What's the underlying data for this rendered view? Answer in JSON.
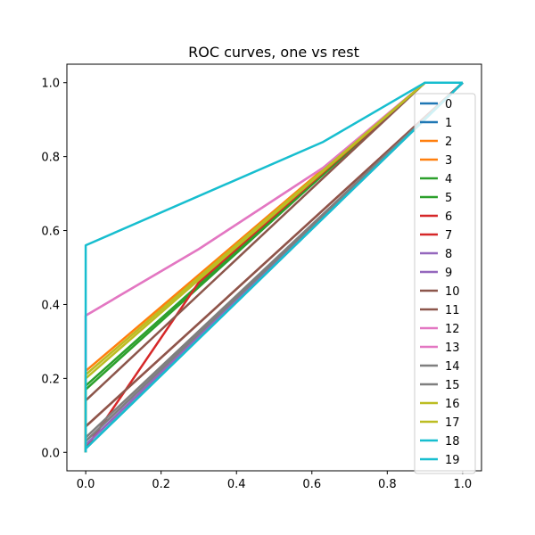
{
  "chart_data": {
    "type": "line",
    "title": "ROC curves, one vs rest",
    "xlabel": "",
    "ylabel": "",
    "xlim": [
      -0.05,
      1.05
    ],
    "ylim": [
      -0.05,
      1.05
    ],
    "xticks": [
      0.0,
      0.2,
      0.4,
      0.6,
      0.8,
      1.0
    ],
    "yticks": [
      0.0,
      0.2,
      0.4,
      0.6,
      0.8,
      1.0
    ],
    "xtick_labels": [
      "0.0",
      "0.2",
      "0.4",
      "0.6",
      "0.8",
      "1.0"
    ],
    "ytick_labels": [
      "0.0",
      "0.2",
      "0.4",
      "0.6",
      "0.8",
      "1.0"
    ],
    "grid": false,
    "legend_position": "right",
    "series": [
      {
        "name": "0",
        "color": "#1f77b4",
        "x": [
          0,
          0,
          1
        ],
        "y": [
          0,
          0.02,
          1
        ]
      },
      {
        "name": "1",
        "color": "#1f77b4",
        "x": [
          0,
          0,
          1
        ],
        "y": [
          0,
          0.01,
          1
        ]
      },
      {
        "name": "2",
        "color": "#ff7f0e",
        "x": [
          0,
          0,
          0.9,
          1
        ],
        "y": [
          0,
          0.22,
          1,
          1
        ]
      },
      {
        "name": "3",
        "color": "#ff7f0e",
        "x": [
          0,
          0,
          0.9,
          1
        ],
        "y": [
          0,
          0.21,
          1,
          1
        ]
      },
      {
        "name": "4",
        "color": "#2ca02c",
        "x": [
          0,
          0,
          0.9,
          1
        ],
        "y": [
          0,
          0.18,
          1,
          1
        ]
      },
      {
        "name": "5",
        "color": "#2ca02c",
        "x": [
          0,
          0,
          0.9,
          1
        ],
        "y": [
          0,
          0.17,
          1,
          1
        ]
      },
      {
        "name": "6",
        "color": "#d62728",
        "x": [
          0,
          0,
          1
        ],
        "y": [
          0,
          0.07,
          1
        ]
      },
      {
        "name": "7",
        "color": "#d62728",
        "x": [
          0,
          0,
          0.3,
          0.9,
          1
        ],
        "y": [
          0,
          0.01,
          0.46,
          1,
          1
        ]
      },
      {
        "name": "8",
        "color": "#9467bd",
        "x": [
          0,
          0,
          1
        ],
        "y": [
          0,
          0.02,
          1
        ]
      },
      {
        "name": "9",
        "color": "#9467bd",
        "x": [
          0,
          0,
          1
        ],
        "y": [
          0,
          0.03,
          1
        ]
      },
      {
        "name": "10",
        "color": "#8c564b",
        "x": [
          0,
          0,
          0.9,
          1
        ],
        "y": [
          0,
          0.14,
          1,
          1
        ]
      },
      {
        "name": "11",
        "color": "#8c564b",
        "x": [
          0,
          0,
          1
        ],
        "y": [
          0,
          0.07,
          1
        ]
      },
      {
        "name": "12",
        "color": "#e377c2",
        "x": [
          0,
          0,
          0.3,
          0.63,
          0.9,
          1
        ],
        "y": [
          0,
          0.37,
          0.55,
          0.77,
          1,
          1
        ]
      },
      {
        "name": "13",
        "color": "#e377c2",
        "x": [
          0,
          0,
          0.3,
          0.63,
          0.9,
          1
        ],
        "y": [
          0,
          0.37,
          0.55,
          0.77,
          1,
          1
        ]
      },
      {
        "name": "14",
        "color": "#7f7f7f",
        "x": [
          0,
          0,
          1
        ],
        "y": [
          0,
          0.04,
          1
        ]
      },
      {
        "name": "15",
        "color": "#7f7f7f",
        "x": [
          0,
          0,
          1
        ],
        "y": [
          0,
          0.03,
          1
        ]
      },
      {
        "name": "16",
        "color": "#bcbd22",
        "x": [
          0,
          0,
          0.9,
          1
        ],
        "y": [
          0,
          0.21,
          1,
          1
        ]
      },
      {
        "name": "17",
        "color": "#bcbd22",
        "x": [
          0,
          0,
          0.9,
          1
        ],
        "y": [
          0,
          0.2,
          1,
          1
        ]
      },
      {
        "name": "18",
        "color": "#17becf",
        "x": [
          0,
          0,
          1
        ],
        "y": [
          0,
          0.01,
          1
        ]
      },
      {
        "name": "19",
        "color": "#17becf",
        "x": [
          0,
          0,
          0.63,
          0.9,
          1
        ],
        "y": [
          0,
          0.56,
          0.84,
          1,
          1
        ]
      }
    ]
  }
}
